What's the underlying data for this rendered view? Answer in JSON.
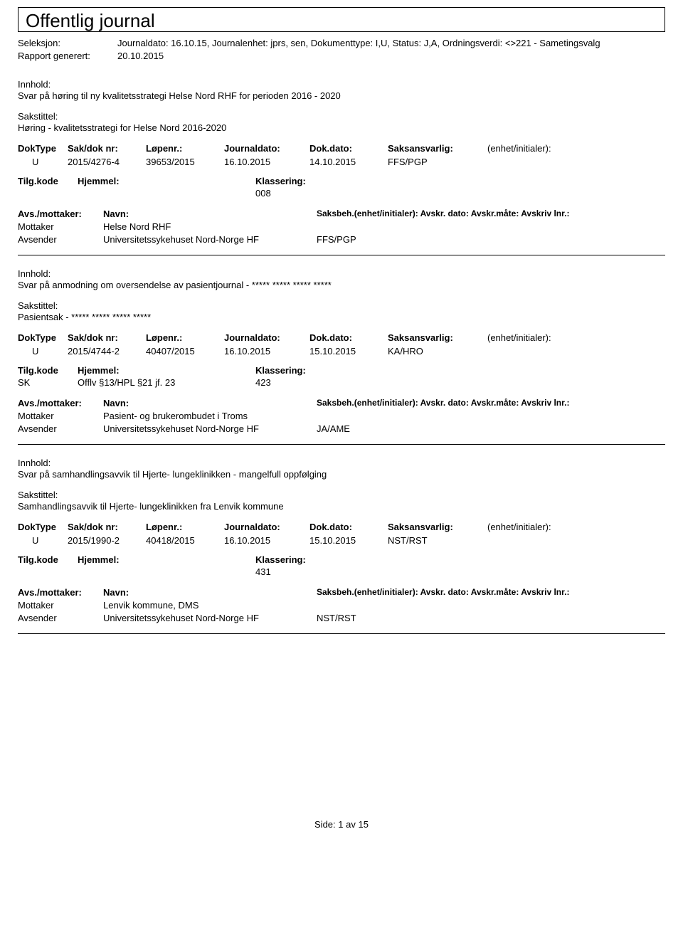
{
  "title": "Offentlig journal",
  "meta": {
    "seleksjon_label": "Seleksjon:",
    "seleksjon_value": "Journaldato: 16.10.15, Journalenhet: jprs, sen, Dokumenttype: I,U, Status: J,A, Ordningsverdi: <>221 - Sametingsvalg",
    "rapport_label": "Rapport generert:",
    "rapport_value": "20.10.2015"
  },
  "labels": {
    "innhold": "Innhold:",
    "sakstittel": "Sakstittel:",
    "doktype": "DokType",
    "sakdok": "Sak/dok nr:",
    "lopenr": "Løpenr.:",
    "journaldato": "Journaldato:",
    "dokdato": "Dok.dato:",
    "saksansvarlig": "Saksansvarlig:",
    "enhet_initialer": "(enhet/initialer):",
    "tilgkode": "Tilg.kode",
    "hjemmel": "Hjemmel:",
    "klassering": "Klassering:",
    "avs_mottaker": "Avs./mottaker:",
    "navn": "Navn:",
    "saksbeh_line": "Saksbeh.(enhet/initialer): Avskr. dato: Avskr.måte: Avskriv lnr.:",
    "mottaker": "Mottaker",
    "avsender": "Avsender"
  },
  "entries": [
    {
      "innhold": "Svar på høring til ny kvalitetsstrategi Helse Nord RHF for perioden 2016 - 2020",
      "sakstittel": "Høring - kvalitetsstrategi for Helse Nord 2016-2020",
      "doktype": "U",
      "sakdok": "2015/4276-4",
      "lopenr": "39653/2015",
      "journaldato": "16.10.2015",
      "dokdato": "14.10.2015",
      "saksansvarlig": "FFS/PGP",
      "tilg_code": "",
      "hjemmel": "",
      "klassering": "008",
      "mottaker_name": "Helse Nord RHF",
      "avsender_name": "Universitetssykehuset Nord-Norge HF",
      "avsender_extra": "FFS/PGP"
    },
    {
      "innhold": "Svar på anmodning om oversendelse av pasientjournal - ***** ***** ***** *****",
      "sakstittel": "Pasientsak - ***** ***** ***** *****",
      "doktype": "U",
      "sakdok": "2015/4744-2",
      "lopenr": "40407/2015",
      "journaldato": "16.10.2015",
      "dokdato": "15.10.2015",
      "saksansvarlig": "KA/HRO",
      "tilg_code": "SK",
      "hjemmel": "Offlv §13/HPL §21 jf. 23",
      "klassering": "423",
      "mottaker_name": "Pasient- og brukerombudet i Troms",
      "avsender_name": "Universitetssykehuset Nord-Norge HF",
      "avsender_extra": "JA/AME"
    },
    {
      "innhold": "Svar på samhandlingsavvik til Hjerte- lungeklinikken - mangelfull oppfølging",
      "sakstittel": "Samhandlingsavvik til Hjerte- lungeklinikken fra Lenvik kommune",
      "doktype": "U",
      "sakdok": "2015/1990-2",
      "lopenr": "40418/2015",
      "journaldato": "16.10.2015",
      "dokdato": "15.10.2015",
      "saksansvarlig": "NST/RST",
      "tilg_code": "",
      "hjemmel": "",
      "klassering": "431",
      "mottaker_name": "Lenvik kommune, DMS",
      "avsender_name": "Universitetssykehuset Nord-Norge HF",
      "avsender_extra": "NST/RST"
    }
  ],
  "footer": {
    "side_label": "Side:",
    "page": "1",
    "av": "av",
    "total": "15"
  }
}
